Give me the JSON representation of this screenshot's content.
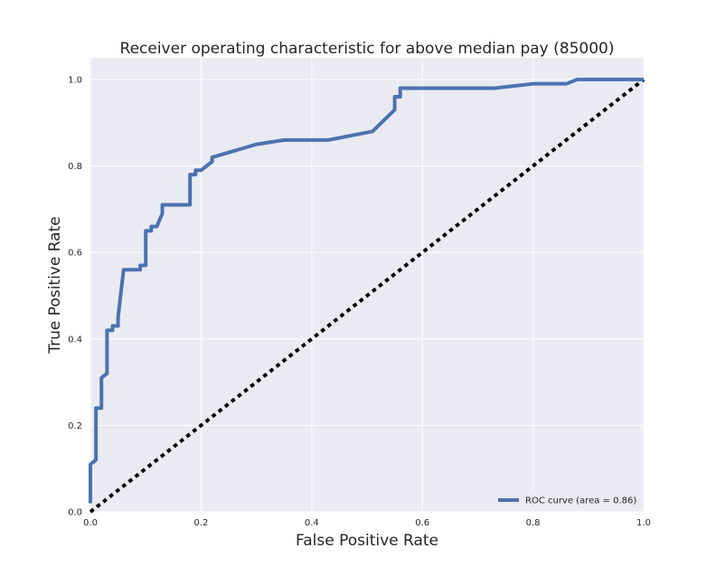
{
  "chart_data": {
    "type": "line",
    "title": "Receiver operating characteristic for above median pay (85000)",
    "xlabel": "False Positive Rate",
    "ylabel": "True Positive Rate",
    "xlim": [
      0.0,
      1.0
    ],
    "ylim": [
      0.0,
      1.05
    ],
    "xticks": [
      0.0,
      0.2,
      0.4,
      0.6,
      0.8,
      1.0
    ],
    "yticks": [
      0.0,
      0.2,
      0.4,
      0.6,
      0.8,
      1.0
    ],
    "xtick_labels": [
      "0.0",
      "0.2",
      "0.4",
      "0.6",
      "0.8",
      "1.0"
    ],
    "ytick_labels": [
      "0.0",
      "0.2",
      "0.4",
      "0.6",
      "0.8",
      "1.0"
    ],
    "grid": true,
    "legend_placement": "lower-right",
    "colors": {
      "background": "#eaeaf2",
      "grid": "#ffffff",
      "roc": "#4c72b0",
      "diagonal": "#000000"
    },
    "series": [
      {
        "name": "ROC curve (area = 0.86)",
        "style": "solid",
        "x": [
          0.0,
          0.0,
          0.01,
          0.01,
          0.02,
          0.02,
          0.03,
          0.03,
          0.04,
          0.04,
          0.05,
          0.05,
          0.06,
          0.07,
          0.09,
          0.09,
          0.1,
          0.1,
          0.11,
          0.11,
          0.12,
          0.13,
          0.13,
          0.16,
          0.18,
          0.18,
          0.19,
          0.19,
          0.2,
          0.22,
          0.22,
          0.3,
          0.35,
          0.43,
          0.47,
          0.51,
          0.55,
          0.55,
          0.56,
          0.56,
          0.73,
          0.8,
          0.86,
          0.88,
          1.0
        ],
        "y": [
          0.02,
          0.11,
          0.12,
          0.24,
          0.24,
          0.31,
          0.32,
          0.42,
          0.42,
          0.43,
          0.43,
          0.45,
          0.56,
          0.56,
          0.56,
          0.57,
          0.57,
          0.65,
          0.65,
          0.66,
          0.66,
          0.69,
          0.71,
          0.71,
          0.71,
          0.78,
          0.78,
          0.79,
          0.79,
          0.81,
          0.82,
          0.85,
          0.86,
          0.86,
          0.87,
          0.88,
          0.93,
          0.96,
          0.96,
          0.98,
          0.98,
          0.99,
          0.99,
          1.0,
          1.0
        ]
      },
      {
        "style": "dashed",
        "x": [
          0.0,
          1.0
        ],
        "y": [
          0.0,
          1.0
        ]
      }
    ]
  }
}
